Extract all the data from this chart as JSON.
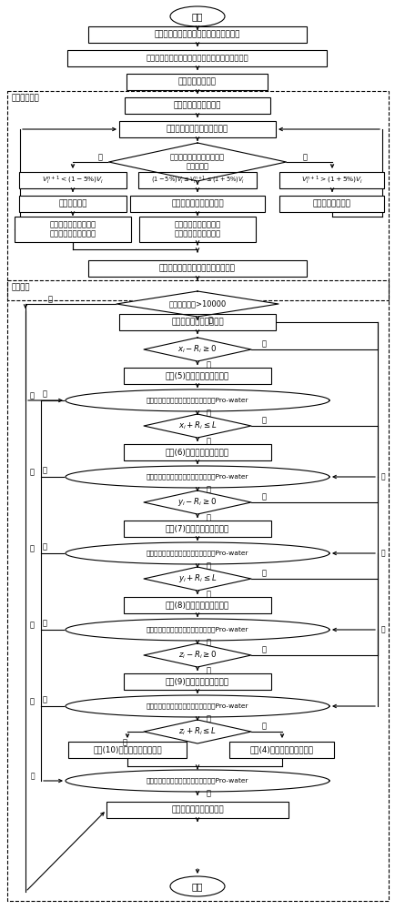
{
  "bg": "#ffffff",
  "lw": 0.8,
  "texts": {
    "start": "开始",
    "end": "结束",
    "n1": "建立水泥净浆微观微元体模型并划分网格",
    "n2": "读入水灰比，四大矿物组分含量及其粒径分布范围",
    "n3": "计算水泥颗粒体积",
    "loop1": "矿物组分循环",
    "n4": "计算该矿物组分的体积",
    "n5": "随机生成该矿物组分颗粒粒径",
    "d1": "判定是否继续进行该矿物组\n分颗粒投放",
    "c1": "$V_i^{n+1}<(1-5\\%)V_i$",
    "c2": "$(1-5\\%)V_i\\leq V_i^{n+1}\\leq(1+5\\%)V_i$",
    "c3": "$V_i^{n+1}>(1+5\\%)V_i$",
    "a1": "继续进行投放",
    "a2": "结束该矿物组分颗粒投放",
    "a3": "当前颗粒粒径错误",
    "b1": "统计该矿物组分已生成\n颗粒的总数目和总体积",
    "b2": "统计该矿物组分已生成\n颗粒的总数目和总体积",
    "n6": "按粒径从大到小对所有颗粒进行排序",
    "loop2": "颗粒循环",
    "dloop": "颗粒投放次数>10000",
    "n7": "随机生成该颗粒形心位置",
    "d2": "$x_i - R_i \\geq 0$",
    "n8": "按式(5)选择颗粒范围内单元",
    "e1": "判定颗粒范围内单元材料属性是否全为Pro-water",
    "d3": "$x_i + R_i \\leq L$",
    "n9": "按式(6)选择颗粒范围内单元",
    "e2": "判定颗粒范围内单元材料属性是否全为Pro-water",
    "d4": "$y_i - R_i \\geq 0$",
    "n10": "按式(7)选择颗粒范围内单元",
    "e3": "判定颗粒范围内单元材料属性是否全为Pro-water",
    "d5": "$y_i + R_i \\leq L$",
    "n11": "按式(8)选择颗粒范围内单元",
    "e4": "判定颗粒范围内单元材料属性是否全为Pro-water",
    "d6": "$z_i - R_i \\geq 0$",
    "n12": "按式(9)选择颗粒范围内单元",
    "e5": "判定颗粒范围内单元材料属性是否全为Pro-water",
    "d7": "$z_i + R_i \\leq L$",
    "n13": "按式(10)选择颗粒范围内单元",
    "n14": "按式(4)选择颗粒范围内单元",
    "e6": "判定颗粒范围内单元材料属性是否全为Pro-water",
    "nout": "输出所有单元的材料属性",
    "yes": "是",
    "no": "否"
  }
}
